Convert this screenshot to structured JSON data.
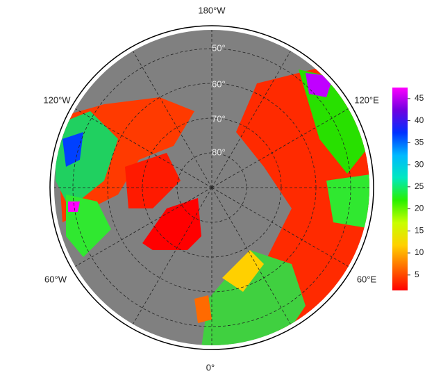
{
  "map": {
    "longitude_labels": [
      "180°W",
      "120°W",
      "120°E",
      "60°W",
      "60°E",
      "0°"
    ],
    "latitude_labels": [
      "50°",
      "60°",
      "70°",
      "80°"
    ],
    "colorbar": {
      "clim": [
        1.5,
        47.5
      ],
      "ticks": [
        5,
        10,
        15,
        20,
        25,
        30,
        35,
        40,
        45
      ],
      "colormap": [
        "#ff0000",
        "#ff6a00",
        "#ffd000",
        "#c8ff00",
        "#28f000",
        "#00e8c0",
        "#00b8ff",
        "#0030ff",
        "#7000e0",
        "#ff00ff"
      ]
    }
  }
}
